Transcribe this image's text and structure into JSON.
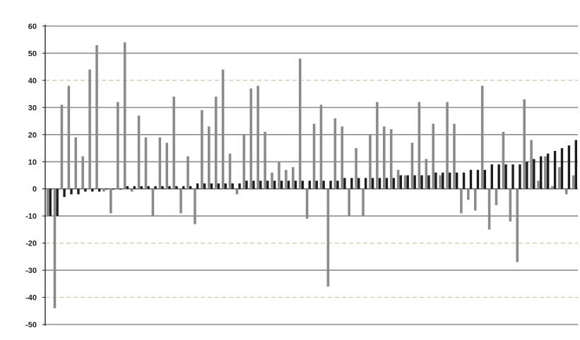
{
  "chart_data": {
    "type": "bar",
    "title": "",
    "xlabel": "",
    "ylabel": "",
    "ylim": [
      -50,
      60
    ],
    "yticks": [
      60,
      50,
      40,
      30,
      20,
      10,
      0,
      -10,
      -20,
      -30,
      -40,
      -50
    ],
    "grid": true,
    "legend": "none",
    "x": [
      1,
      2,
      3,
      4,
      5,
      6,
      7,
      8,
      9,
      10,
      11,
      12,
      13,
      14,
      15,
      16,
      17,
      18,
      19,
      20,
      21,
      22,
      23,
      24,
      25,
      26,
      27,
      28,
      29,
      30,
      31,
      32,
      33,
      34,
      35,
      36,
      37,
      38,
      39,
      40,
      41,
      42,
      43,
      44,
      45,
      46,
      47,
      48,
      49,
      50,
      51,
      52,
      53,
      54,
      55,
      56,
      57,
      58,
      59,
      60,
      61,
      62,
      63,
      64,
      65,
      66,
      67,
      68,
      69,
      70,
      71,
      72,
      73,
      74,
      75,
      76
    ],
    "series": [
      {
        "color": "#8a8a8a",
        "values": [
          -10,
          -44,
          31,
          38,
          19,
          12,
          44,
          53,
          -1,
          -9,
          32,
          54,
          -1,
          27,
          19,
          -10,
          19,
          17,
          34,
          -9,
          12,
          -13,
          29,
          23,
          34,
          44,
          13,
          -2,
          20,
          37,
          38,
          21,
          6,
          10,
          7,
          8,
          48,
          -11,
          24,
          31,
          -36,
          26,
          23,
          -10,
          15,
          -10,
          20,
          32,
          23,
          22,
          7,
          5,
          17,
          32,
          11,
          24,
          5,
          32,
          24,
          -9,
          -4,
          -8,
          38,
          -15,
          -6,
          21,
          -12,
          -27,
          33,
          18,
          3,
          12,
          1,
          8,
          -2,
          5
        ]
      },
      {
        "color": "#1c1c1c",
        "values": [
          -10,
          -10,
          -3,
          -2,
          -2,
          -1,
          -1,
          -1,
          0,
          0,
          0,
          1,
          1,
          1,
          1,
          1,
          1,
          1,
          1,
          1,
          1,
          2,
          2,
          2,
          2,
          2,
          2,
          2,
          3,
          3,
          3,
          3,
          3,
          3,
          3,
          3,
          3,
          3,
          3,
          3,
          3,
          3,
          4,
          4,
          4,
          4,
          4,
          4,
          4,
          4,
          5,
          5,
          5,
          5,
          5,
          6,
          6,
          6,
          6,
          6,
          7,
          7,
          7,
          9,
          9,
          9,
          9,
          9,
          10,
          11,
          12,
          13,
          14,
          15,
          16,
          18
        ]
      }
    ]
  }
}
